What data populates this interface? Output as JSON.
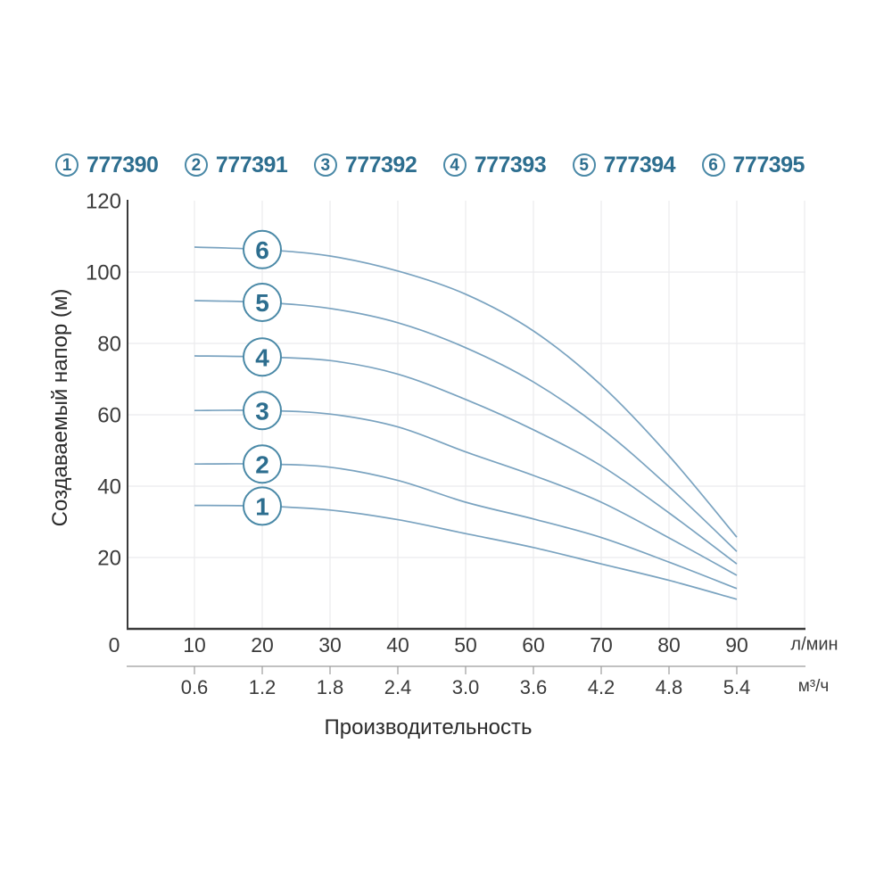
{
  "legend": {
    "items": [
      {
        "num": "1",
        "code": "777390"
      },
      {
        "num": "2",
        "code": "777391"
      },
      {
        "num": "3",
        "code": "777392"
      },
      {
        "num": "4",
        "code": "777393"
      },
      {
        "num": "5",
        "code": "777394"
      },
      {
        "num": "6",
        "code": "777395"
      }
    ]
  },
  "chart_data": {
    "type": "line",
    "title": "",
    "xlabel": "Производительность",
    "ylabel": "Создаваемый напор (м)",
    "x_unit_primary": "л/мин",
    "x_unit_secondary": "м³/ч",
    "xlim": [
      0,
      100
    ],
    "ylim": [
      0,
      120
    ],
    "grid": true,
    "legend_position": "top",
    "x_ticks_primary": [
      0,
      10,
      20,
      30,
      40,
      50,
      60,
      70,
      80,
      90
    ],
    "x_ticks_secondary": [
      "0.6",
      "1.2",
      "1.8",
      "2.4",
      "3.0",
      "3.6",
      "4.2",
      "4.8",
      "5.4"
    ],
    "x_ticks_secondary_positions": [
      10,
      20,
      30,
      40,
      50,
      60,
      70,
      80,
      90
    ],
    "y_ticks": [
      20,
      40,
      60,
      80,
      100,
      120
    ],
    "x_gridlines": [
      10,
      20,
      30,
      40,
      50,
      60,
      70,
      80,
      90,
      100
    ],
    "y_gridlines": [
      20,
      40,
      60,
      80,
      100
    ],
    "x": [
      10,
      20,
      30,
      40,
      50,
      60,
      70,
      80,
      90
    ],
    "curve_label_x": 20,
    "series": [
      {
        "name": "1",
        "code": "777390",
        "values": [
          34.6,
          34.4,
          33.3,
          30.6,
          26.7,
          22.8,
          18.2,
          13.6,
          8.3
        ]
      },
      {
        "name": "2",
        "code": "777391",
        "values": [
          46.2,
          46.2,
          45.3,
          41.6,
          35.5,
          30.8,
          25.6,
          18.7,
          11.3
        ]
      },
      {
        "name": "3",
        "code": "777392",
        "values": [
          61.2,
          61.2,
          60.2,
          56.6,
          49.6,
          43.0,
          35.5,
          25.5,
          15.0
        ]
      },
      {
        "name": "4",
        "code": "777393",
        "values": [
          76.5,
          76.2,
          75.2,
          71.4,
          64.3,
          55.8,
          45.7,
          32.5,
          18.2
        ]
      },
      {
        "name": "5",
        "code": "777394",
        "values": [
          92.0,
          91.5,
          89.8,
          85.8,
          78.8,
          69.2,
          56.2,
          39.8,
          21.7
        ]
      },
      {
        "name": "6",
        "code": "777395",
        "values": [
          107.0,
          106.3,
          104.5,
          100.3,
          93.8,
          83.5,
          68.3,
          48.5,
          25.7
        ]
      }
    ]
  },
  "colors": {
    "curve": "#7aa3c0",
    "accent_dark": "#2d6e8f",
    "circle_border": "#4a89a7",
    "axis": "#3a3a3a",
    "axis_secondary": "#9c9c9c",
    "grid": "#ebebed",
    "tick_text": "#3b3b3b"
  }
}
